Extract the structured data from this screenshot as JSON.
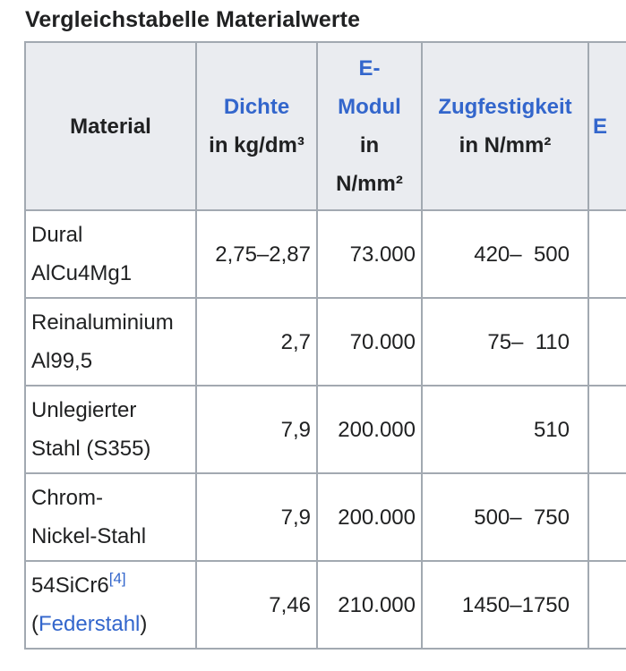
{
  "caption": "Vergleichstabelle Materialwerte",
  "header": {
    "material": "Material",
    "dichte": {
      "link": "Dichte",
      "unit": "in kg/dm³"
    },
    "emodul": {
      "link_line1": "E-",
      "link_line2": "Modul",
      "unit_line1": "in",
      "unit_line2": "N/mm²"
    },
    "zugfestigkeit": {
      "link": "Zugfestigkeit",
      "unit": "in N/mm²"
    },
    "next_col_partial": "E"
  },
  "rows": [
    {
      "name_line1": "Dural",
      "name_line2": "AlCu4Mg1",
      "dichte": "2,75–2,87",
      "emodul": "73.000",
      "zug": "420–  500"
    },
    {
      "name_line1": "Reinaluminium",
      "name_line2": "Al99,5",
      "dichte": "2,7",
      "emodul": "70.000",
      "zug": "75–  110"
    },
    {
      "name_line1": "Unlegierter",
      "name_line2": "Stahl (S355)",
      "dichte": "7,9",
      "emodul": "200.000",
      "zug": "510"
    },
    {
      "name_line1": "Chrom-",
      "name_line2": "Nickel-Stahl",
      "dichte": "7,9",
      "emodul": "200.000",
      "zug": "500–  750"
    },
    {
      "name_line1": "54SiCr6",
      "footnote": "[4]",
      "name_line2_open": "(",
      "name_line2_link": "Federstahl",
      "name_line2_close": ")",
      "dichte": "7,46",
      "emodul": "210.000",
      "zug": "1450–1750"
    }
  ],
  "colors": {
    "link": "#3366cc",
    "header_bg": "#eaecf0",
    "border": "#a2a9b1",
    "text": "#202122"
  }
}
